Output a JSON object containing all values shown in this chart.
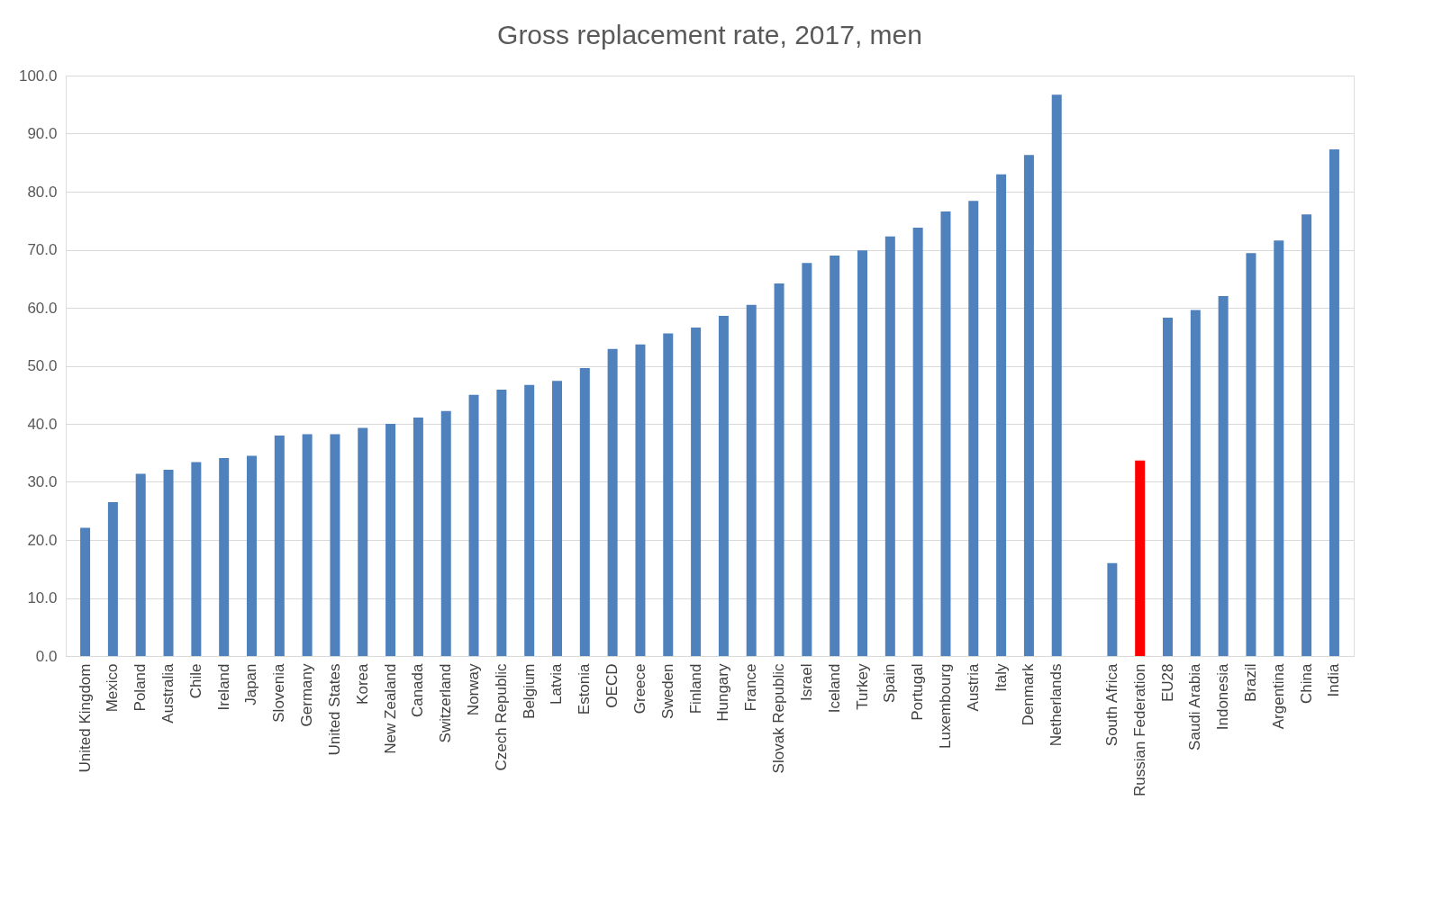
{
  "chart_data": {
    "type": "bar",
    "title": "Gross replacement rate, 2017, men",
    "categories": [
      "United Kingdom",
      "Mexico",
      "Poland",
      "Australia",
      "Chile",
      "Ireland",
      "Japan",
      "Slovenia",
      "Germany",
      "United States",
      "Korea",
      "New Zealand",
      "Canada",
      "Switzerland",
      "Norway",
      "Czech Republic",
      "Belgium",
      "Latvia",
      "Estonia",
      "OECD",
      "Greece",
      "Sweden",
      "Finland",
      "Hungary",
      "France",
      "Slovak Republic",
      "Israel",
      "Iceland",
      "Turkey",
      "Spain",
      "Portugal",
      "Luxembourg",
      "Austria",
      "Italy",
      "Denmark",
      "Netherlands",
      null,
      "South Africa",
      "Russian Federation",
      "EU28",
      "Saudi Arabia",
      "Indonesia",
      "Brazil",
      "Argentina",
      "China",
      "India"
    ],
    "values": [
      22.1,
      26.5,
      31.4,
      32.1,
      33.4,
      34.1,
      34.5,
      38.0,
      38.2,
      38.2,
      39.3,
      40.0,
      41.1,
      42.2,
      45.0,
      45.9,
      46.7,
      47.4,
      49.6,
      52.9,
      53.7,
      55.6,
      56.6,
      58.6,
      60.5,
      64.2,
      67.7,
      69.0,
      69.9,
      72.3,
      73.8,
      76.6,
      78.4,
      83.0,
      86.3,
      96.7,
      null,
      16.0,
      33.7,
      58.3,
      59.6,
      62.0,
      69.4,
      71.6,
      76.1,
      87.3
    ],
    "colors": [
      "#4f81bd",
      "#4f81bd",
      "#4f81bd",
      "#4f81bd",
      "#4f81bd",
      "#4f81bd",
      "#4f81bd",
      "#4f81bd",
      "#4f81bd",
      "#4f81bd",
      "#4f81bd",
      "#4f81bd",
      "#4f81bd",
      "#4f81bd",
      "#4f81bd",
      "#4f81bd",
      "#4f81bd",
      "#4f81bd",
      "#4f81bd",
      "#4f81bd",
      "#4f81bd",
      "#4f81bd",
      "#4f81bd",
      "#4f81bd",
      "#4f81bd",
      "#4f81bd",
      "#4f81bd",
      "#4f81bd",
      "#4f81bd",
      "#4f81bd",
      "#4f81bd",
      "#4f81bd",
      "#4f81bd",
      "#4f81bd",
      "#4f81bd",
      "#4f81bd",
      "#4f81bd",
      "#4f81bd",
      "#ff0000",
      "#4f81bd",
      "#4f81bd",
      "#4f81bd",
      "#4f81bd",
      "#4f81bd",
      "#4f81bd",
      "#4f81bd"
    ],
    "ylim": [
      0,
      100
    ],
    "yticks": [
      {
        "value": 0,
        "label": "0.0"
      },
      {
        "value": 10,
        "label": "10.0"
      },
      {
        "value": 20,
        "label": "20.0"
      },
      {
        "value": 30,
        "label": "30.0"
      },
      {
        "value": 40,
        "label": "40.0"
      },
      {
        "value": 50,
        "label": "50.0"
      },
      {
        "value": 60,
        "label": "60.0"
      },
      {
        "value": 70,
        "label": "70.0"
      },
      {
        "value": 80,
        "label": "80.0"
      },
      {
        "value": 90,
        "label": "90.0"
      },
      {
        "value": 100,
        "label": "100.0"
      }
    ],
    "grid": "y",
    "legend": false
  }
}
